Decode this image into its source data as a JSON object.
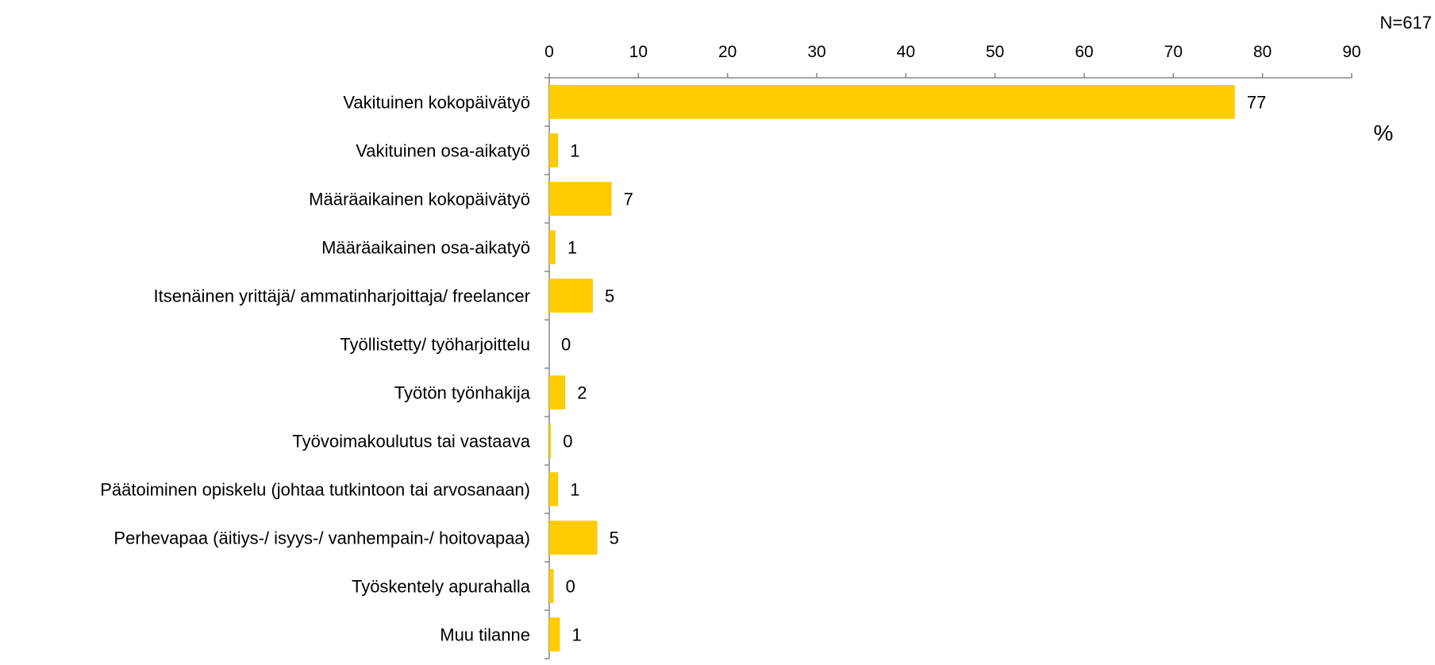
{
  "chart_data": {
    "type": "bar",
    "orientation": "horizontal",
    "n_label": "N=617",
    "unit_label": "%",
    "xlim": [
      0,
      90
    ],
    "xticks": [
      0,
      10,
      20,
      30,
      40,
      50,
      60,
      70,
      80,
      90
    ],
    "categories": [
      "Vakituinen kokopäivätyö",
      "Vakituinen osa-aikatyö",
      "Määräaikainen kokopäivätyö",
      "Määräaikainen osa-aikatyö",
      "Itsenäinen yrittäjä/ ammatinharjoittaja/ freelancer",
      "Työllistetty/ työharjoittelu",
      "Työtön työnhakija",
      "Työvoimakoulutus tai vastaava",
      "Päätoiminen opiskelu (johtaa tutkintoon tai arvosanaan)",
      "Perhevapaa (äitiys-/ isyys-/ vanhempain-/ hoitovapaa)",
      "Työskentely apurahalla",
      "Muu tilanne"
    ],
    "values": [
      76.9,
      1.0,
      7.0,
      0.7,
      4.9,
      0.0,
      1.8,
      0.2,
      1.0,
      5.4,
      0.5,
      1.2
    ],
    "data_labels": [
      "77",
      "1",
      "7",
      "1",
      "5",
      "0",
      "2",
      "0",
      "1",
      "5",
      "0",
      "1"
    ],
    "bar_color": "#FFCC00",
    "axis_color": "#868686",
    "grid": false
  }
}
